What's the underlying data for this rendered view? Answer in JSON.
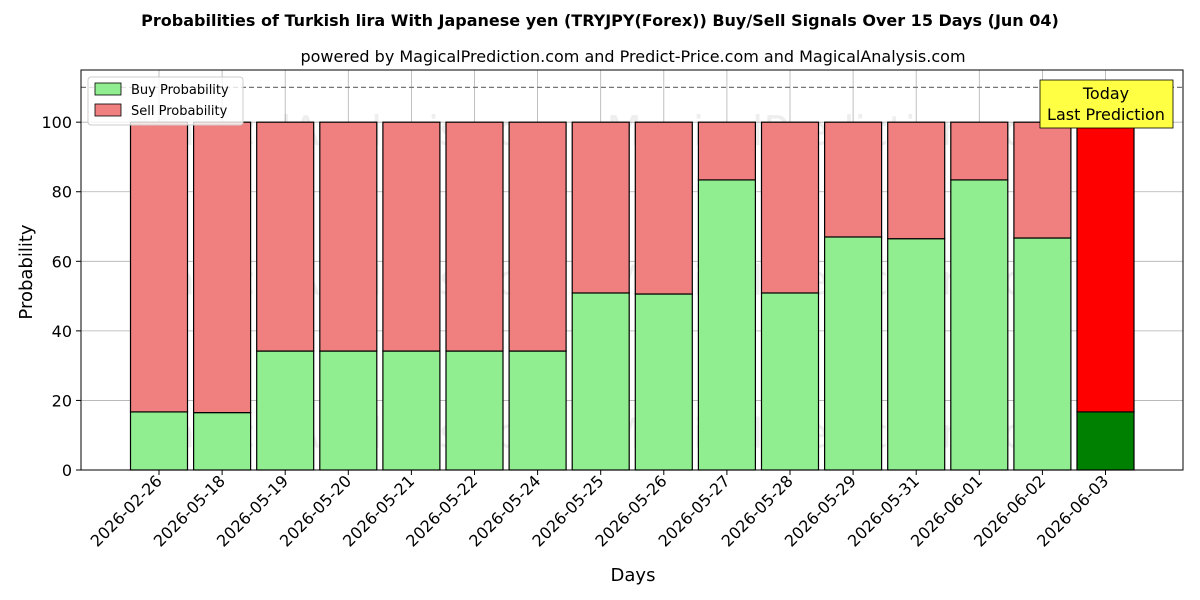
{
  "chart_data": {
    "type": "bar",
    "stacked": true,
    "title": "Probabilities of Turkish lira With Japanese yen (TRYJPY(Forex)) Buy/Sell Signals Over 15 Days (Jun 04)",
    "subtitle": "powered by MagicalPrediction.com and Predict-Price.com and MagicalAnalysis.com",
    "xlabel": "Days",
    "ylabel": "Probability",
    "ylim": [
      0,
      115
    ],
    "yticks": [
      0,
      20,
      40,
      60,
      80,
      100
    ],
    "grid": true,
    "legend_position": "top-left",
    "reference_line": 110,
    "categories": [
      "2026-02-26",
      "2026-05-18",
      "2026-05-19",
      "2026-05-20",
      "2026-05-21",
      "2026-05-22",
      "2026-05-24",
      "2026-05-25",
      "2026-05-26",
      "2026-05-27",
      "2026-05-28",
      "2026-05-29",
      "2026-05-31",
      "2026-06-01",
      "2026-06-02",
      "2026-06-03"
    ],
    "series": [
      {
        "name": "Buy Probability",
        "color": "#90ee90",
        "highlight_color": "#008000",
        "values": [
          16.7,
          16.5,
          34.2,
          34.2,
          34.2,
          34.2,
          34.2,
          50.9,
          50.6,
          83.4,
          50.9,
          67.0,
          66.5,
          83.4,
          66.7,
          16.7
        ]
      },
      {
        "name": "Sell Probability",
        "color": "#f08080",
        "highlight_color": "#ff0000",
        "values": [
          83.3,
          83.5,
          65.8,
          65.8,
          65.8,
          65.8,
          65.8,
          49.1,
          49.4,
          16.6,
          49.1,
          33.0,
          33.5,
          16.6,
          33.3,
          83.3
        ]
      }
    ],
    "highlight_index": 15,
    "annotation": {
      "line1": "Today",
      "line2": "Last Prediction",
      "bg_color": "#ffff44"
    },
    "watermarks": [
      "MagicalAnalysis.com",
      "MagicalPrediction.com"
    ]
  }
}
